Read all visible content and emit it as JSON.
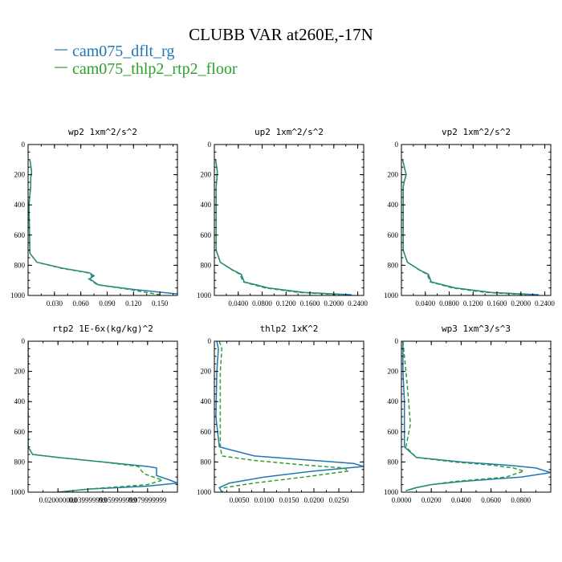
{
  "title": "CLUBB VAR at260E,-17N",
  "colors": {
    "dflt": "#1f77b4",
    "floor": "#2ca02c"
  },
  "legend": [
    {
      "label": "cam075_dflt_rg",
      "color": "#1f77b4"
    },
    {
      "label": "cam075_thlp2_rtp2_floor",
      "color": "#2ca02c"
    }
  ],
  "chart_data": [
    {
      "type": "line",
      "title": "wp2  1xm^2/s^2",
      "xlim": [
        0,
        0.17
      ],
      "ylim": [
        1000,
        0
      ],
      "xticks": [
        "0.030",
        "0.060",
        "0.090",
        "0.120",
        "0.150"
      ],
      "yticks": [
        "0",
        "200",
        "400",
        "600",
        "800",
        "1000"
      ],
      "series": [
        {
          "name": "cam075_dflt_rg",
          "x": [
            0.002,
            0.004,
            0.003,
            0.003,
            0.001,
            0.002,
            0.01,
            0.04,
            0.07,
            0.075,
            0.07,
            0.08,
            0.12,
            0.17
          ],
          "y": [
            100,
            180,
            220,
            270,
            400,
            720,
            780,
            820,
            850,
            870,
            890,
            930,
            960,
            990
          ]
        },
        {
          "name": "cam075_thlp2_rtp2_floor",
          "x": [
            0.002,
            0.004,
            0.003,
            0.003,
            0.001,
            0.002,
            0.01,
            0.038,
            0.068,
            0.073,
            0.069,
            0.079,
            0.115,
            0.15
          ],
          "y": [
            100,
            180,
            220,
            270,
            400,
            720,
            780,
            820,
            850,
            870,
            890,
            930,
            960,
            995
          ]
        }
      ]
    },
    {
      "type": "line",
      "title": "up2  1xm^2/s^2",
      "xlim": [
        0,
        0.25
      ],
      "ylim": [
        1000,
        0
      ],
      "xticks": [
        "0.0400",
        "0.0800",
        "0.1200",
        "0.1600",
        "0.2000",
        "0.2400"
      ],
      "yticks": [
        "0",
        "200",
        "400",
        "600",
        "800",
        "1000"
      ],
      "series": [
        {
          "name": "cam075_dflt_rg",
          "x": [
            0.002,
            0.005,
            0.004,
            0.003,
            0.003,
            0.01,
            0.03,
            0.045,
            0.05,
            0.09,
            0.15,
            0.23
          ],
          "y": [
            100,
            180,
            230,
            280,
            700,
            780,
            830,
            860,
            910,
            950,
            980,
            995
          ]
        },
        {
          "name": "cam075_thlp2_rtp2_floor",
          "x": [
            0.002,
            0.005,
            0.004,
            0.003,
            0.003,
            0.01,
            0.029,
            0.043,
            0.048,
            0.085,
            0.14,
            0.21
          ],
          "y": [
            100,
            180,
            230,
            280,
            700,
            780,
            830,
            860,
            910,
            950,
            980,
            995
          ]
        }
      ]
    },
    {
      "type": "line",
      "title": "vp2  1xm^2/s^2",
      "xlim": [
        0,
        0.25
      ],
      "ylim": [
        1000,
        0
      ],
      "xticks": [
        "0.0400",
        "0.0800",
        "0.1200",
        "0.1600",
        "0.2000",
        "0.2400"
      ],
      "yticks": [
        "0",
        "200",
        "400",
        "600",
        "800",
        "1000"
      ],
      "series": [
        {
          "name": "cam075_dflt_rg",
          "x": [
            0.002,
            0.006,
            0.008,
            0.005,
            0.003,
            0.003,
            0.01,
            0.03,
            0.045,
            0.05,
            0.09,
            0.15,
            0.23
          ],
          "y": [
            100,
            170,
            200,
            240,
            280,
            700,
            780,
            830,
            860,
            910,
            950,
            980,
            995
          ]
        },
        {
          "name": "cam075_thlp2_rtp2_floor",
          "x": [
            0.002,
            0.006,
            0.008,
            0.005,
            0.003,
            0.003,
            0.01,
            0.029,
            0.043,
            0.048,
            0.085,
            0.14,
            0.21
          ],
          "y": [
            100,
            170,
            200,
            240,
            280,
            700,
            780,
            830,
            860,
            910,
            950,
            980,
            995
          ]
        }
      ]
    },
    {
      "type": "line",
      "title": "rtp2  1E-6x(kg/kg)^2",
      "xlim": [
        0,
        0.1
      ],
      "ylim": [
        1000,
        0
      ],
      "xticks": [
        "0.020000000",
        "0.039999999",
        "0.059999999",
        "0.079999999"
      ],
      "yticks": [
        "0",
        "200",
        "400",
        "600",
        "800",
        "1000"
      ],
      "series": [
        {
          "name": "cam075_dflt_rg",
          "x": [
            0.0,
            0.0,
            0.003,
            0.02,
            0.05,
            0.08,
            0.086,
            0.086,
            0.095,
            0.1,
            0.08,
            0.04,
            0.02
          ],
          "y": [
            0,
            700,
            750,
            770,
            800,
            830,
            840,
            890,
            920,
            940,
            960,
            980,
            1000
          ]
        },
        {
          "name": "cam075_thlp2_rtp2_floor",
          "x": [
            0.0,
            0.0,
            0.003,
            0.02,
            0.05,
            0.074,
            0.076,
            0.078,
            0.09,
            0.08,
            0.04,
            0.02
          ],
          "y": [
            0,
            700,
            750,
            770,
            800,
            830,
            860,
            880,
            920,
            950,
            980,
            1000
          ]
        }
      ]
    },
    {
      "type": "line",
      "title": "thlp2  1xK^2",
      "xlim": [
        0,
        0.03
      ],
      "ylim": [
        1000,
        0
      ],
      "xticks": [
        "0.0050",
        "0.0100",
        "0.0150",
        "0.0200",
        "0.0250"
      ],
      "yticks": [
        "0",
        "200",
        "400",
        "600",
        "800",
        "1000"
      ],
      "series": [
        {
          "name": "cam075_dflt_rg",
          "x": [
            0.0005,
            0.0008,
            0.0005,
            0.0003,
            0.001,
            0.008,
            0.02,
            0.028,
            0.03,
            0.02,
            0.01,
            0.003,
            0.001,
            0.0015
          ],
          "y": [
            0,
            50,
            200,
            500,
            700,
            760,
            790,
            810,
            830,
            860,
            900,
            940,
            970,
            1000
          ]
        },
        {
          "name": "cam075_thlp2_rtp2_floor",
          "x": [
            0.001,
            0.0015,
            0.0012,
            0.0012,
            0.0012,
            0.0015,
            0.008,
            0.018,
            0.026,
            0.027,
            0.018,
            0.008,
            0.002,
            0.0015
          ],
          "y": [
            0,
            50,
            200,
            500,
            700,
            760,
            790,
            820,
            840,
            860,
            900,
            940,
            970,
            1000
          ]
        }
      ]
    },
    {
      "type": "line",
      "title": "wp3  1xm^3/s^3",
      "xlim": [
        0,
        0.1
      ],
      "ylim": [
        1000,
        0
      ],
      "xticks": [
        "0.0000",
        "0.0200",
        "0.0400",
        "0.0600",
        "0.0800"
      ],
      "yticks": [
        "0",
        "200",
        "400",
        "600",
        "800",
        "1000"
      ],
      "series": [
        {
          "name": "cam075_dflt_rg",
          "x": [
            0.001,
            0.001,
            0.002,
            0.002,
            0.01,
            0.04,
            0.07,
            0.09,
            0.1,
            0.08,
            0.04,
            0.02,
            0.01,
            0.003
          ],
          "y": [
            0,
            200,
            400,
            700,
            770,
            800,
            820,
            840,
            870,
            900,
            930,
            950,
            970,
            990
          ]
        },
        {
          "name": "cam075_thlp2_rtp2_floor",
          "x": [
            0.001,
            0.002,
            0.003,
            0.004,
            0.006,
            0.003,
            0.01,
            0.035,
            0.06,
            0.075,
            0.082,
            0.07,
            0.035,
            0.02,
            0.01,
            0.003
          ],
          "y": [
            0,
            100,
            200,
            300,
            550,
            700,
            770,
            800,
            820,
            840,
            860,
            900,
            930,
            950,
            970,
            990
          ]
        }
      ]
    }
  ]
}
